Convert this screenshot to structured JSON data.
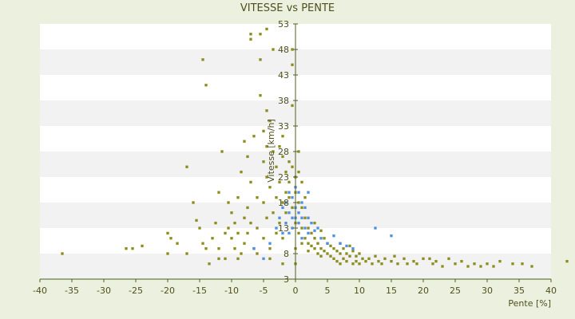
{
  "chart_data": {
    "type": "scatter",
    "title": "VITESSE vs PENTE",
    "xlabel": "Pente [%]",
    "ylabel": "Vitesse [km/h]",
    "xlim": [
      -40,
      40
    ],
    "ylim": [
      3,
      53
    ],
    "x_ticks": [
      "-40",
      "-35",
      "-30",
      "-25",
      "-20",
      "-15",
      "-10",
      "-5",
      "0",
      "5",
      "10",
      "15",
      "20",
      "25",
      "30",
      "35",
      "40"
    ],
    "y_ticks": [
      "53",
      "48",
      "43",
      "38",
      "33",
      "28",
      "23",
      "18",
      "13",
      "8",
      "3"
    ],
    "grid": "horizontal bands",
    "colors": {
      "background": "#ebf1de",
      "plot_white": "#ffffff",
      "plot_band": "#f2f2f2",
      "axis": "#4f5f1f",
      "series_main": "#8a8c1e",
      "series_highlight": "#4f8fe0"
    },
    "series": [
      {
        "color": "#8a8c1e",
        "points": [
          [
            -36.5,
            8
          ],
          [
            -26.5,
            9
          ],
          [
            -25.5,
            9
          ],
          [
            -24,
            9.5
          ],
          [
            -20,
            12
          ],
          [
            -20,
            8
          ],
          [
            -19.5,
            11
          ],
          [
            -18.5,
            10
          ],
          [
            -17,
            25
          ],
          [
            -16,
            18
          ],
          [
            -15.5,
            14.5
          ],
          [
            -15,
            13
          ],
          [
            -14.5,
            10
          ],
          [
            -14,
            9
          ],
          [
            -14.5,
            46
          ],
          [
            -14,
            41
          ],
          [
            -13.5,
            6
          ],
          [
            -13,
            11
          ],
          [
            -12.5,
            14
          ],
          [
            -12,
            20
          ],
          [
            -12,
            9
          ],
          [
            -11.5,
            28
          ],
          [
            -11,
            12
          ],
          [
            -11,
            7
          ],
          [
            -10.5,
            18
          ],
          [
            -10.5,
            13
          ],
          [
            -10,
            11
          ],
          [
            -10,
            16
          ],
          [
            -9.5,
            9
          ],
          [
            -9.5,
            14
          ],
          [
            -9,
            19
          ],
          [
            -9,
            12
          ],
          [
            -8.5,
            8
          ],
          [
            -8.5,
            24
          ],
          [
            -8,
            15
          ],
          [
            -8,
            10
          ],
          [
            -8,
            30
          ],
          [
            -7.5,
            27
          ],
          [
            -7.5,
            17
          ],
          [
            -7.5,
            12
          ],
          [
            -7,
            51
          ],
          [
            -7,
            50
          ],
          [
            -7,
            22
          ],
          [
            -7,
            14
          ],
          [
            -6.5,
            31
          ],
          [
            -6.5,
            9
          ],
          [
            -6,
            19
          ],
          [
            -6,
            13
          ],
          [
            -5.5,
            46
          ],
          [
            -5.5,
            51
          ],
          [
            -5.5,
            39
          ],
          [
            -5,
            32
          ],
          [
            -5,
            26
          ],
          [
            -5,
            18
          ],
          [
            -5,
            11
          ],
          [
            -4.5,
            52
          ],
          [
            -4.5,
            36
          ],
          [
            -4.5,
            29
          ],
          [
            -4.5,
            23
          ],
          [
            -4.5,
            15
          ],
          [
            -4,
            34
          ],
          [
            -4,
            21
          ],
          [
            -4,
            9
          ],
          [
            -3.5,
            48
          ],
          [
            -3.5,
            28
          ],
          [
            -3.5,
            16
          ],
          [
            -3,
            25
          ],
          [
            -3,
            19
          ],
          [
            -3,
            12
          ],
          [
            -2.5,
            29
          ],
          [
            -2.5,
            22
          ],
          [
            -2.5,
            14
          ],
          [
            -2,
            31
          ],
          [
            -2,
            27
          ],
          [
            -2,
            18
          ],
          [
            -2,
            11
          ],
          [
            -1.5,
            24
          ],
          [
            -1.5,
            20
          ],
          [
            -1.5,
            16
          ],
          [
            -1,
            26
          ],
          [
            -1,
            22
          ],
          [
            -1,
            19
          ],
          [
            -0.5,
            48
          ],
          [
            -0.5,
            45
          ],
          [
            -0.5,
            37
          ],
          [
            -0.5,
            25
          ],
          [
            -0.5,
            17
          ],
          [
            0,
            23
          ],
          [
            0,
            20
          ],
          [
            0,
            14
          ],
          [
            0,
            9
          ],
          [
            0,
            6
          ],
          [
            0.5,
            28
          ],
          [
            0.5,
            24
          ],
          [
            0.5,
            18
          ],
          [
            0.5,
            12
          ],
          [
            1,
            22
          ],
          [
            1,
            17
          ],
          [
            1,
            13
          ],
          [
            1,
            10
          ],
          [
            1.5,
            19
          ],
          [
            1.5,
            15
          ],
          [
            1.5,
            11
          ],
          [
            2,
            13
          ],
          [
            2,
            10
          ],
          [
            2,
            8.5
          ],
          [
            2.5,
            12
          ],
          [
            2.5,
            9.5
          ],
          [
            3,
            11
          ],
          [
            3,
            9
          ],
          [
            3.5,
            10
          ],
          [
            3.5,
            8
          ],
          [
            4,
            12.5
          ],
          [
            4,
            9
          ],
          [
            4,
            7.5
          ],
          [
            4.5,
            11
          ],
          [
            4.5,
            8.5
          ],
          [
            5,
            10
          ],
          [
            5,
            8
          ],
          [
            5.5,
            9.5
          ],
          [
            5.5,
            7.5
          ],
          [
            6,
            9
          ],
          [
            6,
            7
          ],
          [
            6.5,
            8.5
          ],
          [
            6.5,
            6.5
          ],
          [
            7,
            10
          ],
          [
            7,
            8
          ],
          [
            7,
            6
          ],
          [
            7.5,
            9
          ],
          [
            7.5,
            7
          ],
          [
            8,
            8
          ],
          [
            8,
            6.5
          ],
          [
            8.5,
            9.5
          ],
          [
            8.5,
            7.5
          ],
          [
            9,
            8.5
          ],
          [
            9,
            6
          ],
          [
            9.5,
            7.5
          ],
          [
            9.5,
            6.5
          ],
          [
            10,
            8
          ],
          [
            10,
            6
          ],
          [
            10.5,
            7
          ],
          [
            11,
            6.5
          ],
          [
            11.5,
            7
          ],
          [
            12,
            6
          ],
          [
            12.5,
            7.5
          ],
          [
            13,
            6.5
          ],
          [
            13.5,
            6
          ],
          [
            14,
            7
          ],
          [
            15,
            6.5
          ],
          [
            15.5,
            7.5
          ],
          [
            16,
            6
          ],
          [
            17,
            7
          ],
          [
            17.5,
            6
          ],
          [
            18.5,
            6.5
          ],
          [
            19,
            6
          ],
          [
            20,
            7
          ],
          [
            21,
            7
          ],
          [
            21.5,
            6
          ],
          [
            22,
            6.5
          ],
          [
            23,
            5.5
          ],
          [
            24,
            7
          ],
          [
            25,
            6
          ],
          [
            26,
            6.5
          ],
          [
            27,
            5.5
          ],
          [
            28,
            6
          ],
          [
            29,
            5.5
          ],
          [
            30,
            6
          ],
          [
            31,
            5.5
          ],
          [
            32,
            6.5
          ],
          [
            34,
            6
          ],
          [
            35.5,
            6
          ],
          [
            37,
            5.5
          ],
          [
            42.5,
            6.5
          ],
          [
            -2,
            6
          ],
          [
            -4,
            7
          ],
          [
            -6,
            8
          ],
          [
            -9,
            7
          ],
          [
            -12,
            7
          ],
          [
            -17,
            8
          ],
          [
            3,
            14
          ]
        ]
      },
      {
        "color": "#4f8fe0",
        "points": [
          [
            -3,
            13
          ],
          [
            -2.5,
            15
          ],
          [
            -2,
            17
          ],
          [
            -2,
            12
          ],
          [
            -1.5,
            14
          ],
          [
            -1.5,
            18
          ],
          [
            -1,
            16
          ],
          [
            -1,
            12
          ],
          [
            -1,
            20
          ],
          [
            -0.5,
            15
          ],
          [
            -0.5,
            19
          ],
          [
            -0.5,
            13
          ],
          [
            0,
            17
          ],
          [
            0,
            21
          ],
          [
            0,
            15
          ],
          [
            0.5,
            16
          ],
          [
            0.5,
            20
          ],
          [
            0.5,
            14
          ],
          [
            1,
            18
          ],
          [
            1,
            15
          ],
          [
            1,
            11
          ],
          [
            1.5,
            17
          ],
          [
            1.5,
            13
          ],
          [
            2,
            15
          ],
          [
            2,
            12
          ],
          [
            2.5,
            14
          ],
          [
            3,
            12.5
          ],
          [
            3.5,
            13
          ],
          [
            4,
            11
          ],
          [
            5,
            10
          ],
          [
            6,
            11.5
          ],
          [
            7,
            10
          ],
          [
            8,
            9.5
          ],
          [
            9,
            9
          ],
          [
            12.5,
            13
          ],
          [
            15,
            11.5
          ],
          [
            -5,
            7
          ],
          [
            -4,
            10
          ],
          [
            -6.5,
            9
          ],
          [
            2,
            20
          ]
        ]
      }
    ]
  }
}
